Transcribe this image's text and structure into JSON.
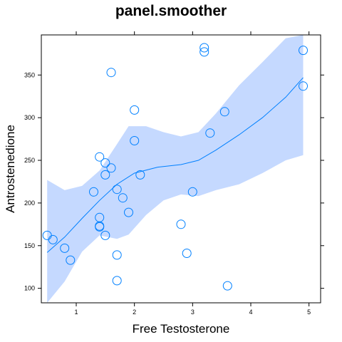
{
  "chart_data": {
    "type": "scatter",
    "title": "panel.smoother",
    "xlabel": "Free Testosterone",
    "ylabel": "Antrostenedione",
    "xlim": [
      0.4,
      5.2
    ],
    "ylim": [
      83,
      397
    ],
    "x_ticks": [
      1,
      2,
      3,
      4,
      5
    ],
    "y_ticks": [
      100,
      150,
      200,
      250,
      300,
      350
    ],
    "grid": false,
    "series": [
      {
        "type": "scatter",
        "color": "#0080ff",
        "points": [
          [
            0.5,
            162
          ],
          [
            0.6,
            157
          ],
          [
            0.8,
            147
          ],
          [
            0.9,
            133
          ],
          [
            1.3,
            213
          ],
          [
            1.4,
            254
          ],
          [
            1.4,
            183
          ],
          [
            1.4,
            173
          ],
          [
            1.4,
            172
          ],
          [
            1.5,
            247
          ],
          [
            1.5,
            233
          ],
          [
            1.5,
            162
          ],
          [
            1.6,
            353
          ],
          [
            1.6,
            241
          ],
          [
            1.7,
            216
          ],
          [
            1.7,
            139
          ],
          [
            1.7,
            109
          ],
          [
            1.8,
            206
          ],
          [
            1.9,
            189
          ],
          [
            2.0,
            309
          ],
          [
            2.0,
            273
          ],
          [
            2.1,
            233
          ],
          [
            2.8,
            175
          ],
          [
            2.9,
            141
          ],
          [
            3.0,
            213
          ],
          [
            3.2,
            382
          ],
          [
            3.2,
            377
          ],
          [
            3.3,
            282
          ],
          [
            3.55,
            307
          ],
          [
            3.6,
            103
          ],
          [
            4.9,
            379
          ],
          [
            4.9,
            337
          ]
        ]
      },
      {
        "type": "line",
        "color": "#0080ff",
        "points": [
          [
            0.5,
            142
          ],
          [
            0.8,
            160
          ],
          [
            1.1,
            182
          ],
          [
            1.4,
            203
          ],
          [
            1.7,
            222
          ],
          [
            2.0,
            235
          ],
          [
            2.4,
            242
          ],
          [
            2.8,
            245
          ],
          [
            3.1,
            250
          ],
          [
            3.4,
            262
          ],
          [
            3.8,
            280
          ],
          [
            4.2,
            300
          ],
          [
            4.6,
            324
          ],
          [
            4.9,
            347
          ]
        ]
      },
      {
        "type": "band",
        "color": "#c5d9ff",
        "x": [
          0.5,
          0.8,
          1.1,
          1.4,
          1.7,
          1.9,
          2.2,
          2.5,
          2.8,
          3.1,
          3.4,
          3.8,
          4.2,
          4.6,
          4.9
        ],
        "upper": [
          227,
          215,
          220,
          238,
          269,
          290,
          290,
          283,
          278,
          283,
          305,
          338,
          365,
          393,
          397
        ],
        "lower": [
          83,
          108,
          143,
          162,
          158,
          163,
          186,
          203,
          210,
          208,
          215,
          222,
          235,
          250,
          256
        ]
      }
    ]
  }
}
